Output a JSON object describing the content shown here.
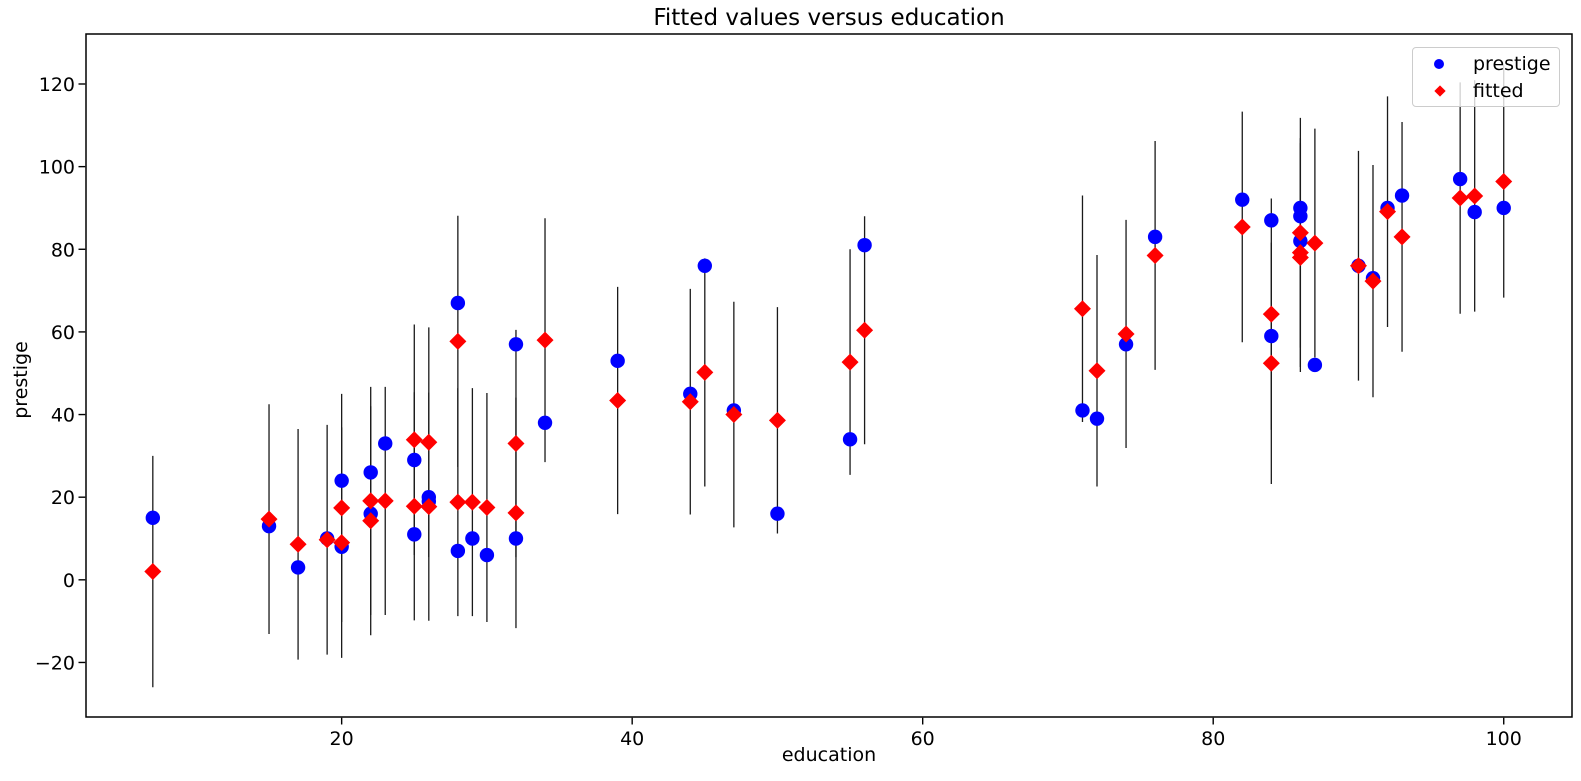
{
  "window": {
    "background": "#ffffff"
  },
  "chart_data": {
    "type": "scatter",
    "title": "Fitted values versus education",
    "xlabel": "education",
    "ylabel": "prestige",
    "xlim": [
      2.4,
      104.7
    ],
    "ylim": [
      -33.2,
      132.1
    ],
    "xticks": [
      20,
      40,
      60,
      80,
      100
    ],
    "yticks": [
      -20,
      0,
      20,
      40,
      60,
      80,
      100,
      120
    ],
    "grid": false,
    "axis_color": "#000000",
    "errorbar_color": "#1a1a1a",
    "legend": {
      "position": "upper right",
      "entries": [
        {
          "label": "prestige",
          "marker": "circle",
          "color": "#0000FF"
        },
        {
          "label": "fitted",
          "marker": "diamond",
          "color": "#FF0000"
        }
      ]
    },
    "series": [
      {
        "name": "prestige",
        "marker": "circle",
        "color": "#0000FF",
        "x": [
          86,
          76,
          92,
          90,
          86,
          84,
          93,
          100,
          87,
          86,
          74,
          98,
          97,
          84,
          91,
          34,
          45,
          56,
          44,
          82,
          72,
          55,
          71,
          50,
          23,
          39,
          28,
          32,
          22,
          25,
          29,
          7,
          26,
          19,
          15,
          20,
          26,
          28,
          17,
          22,
          30,
          25,
          20,
          47,
          32
        ],
        "y": [
          82,
          83,
          90,
          76,
          90,
          87,
          93,
          90,
          52,
          88,
          57,
          89,
          97,
          59,
          73,
          38,
          76,
          81,
          45,
          92,
          39,
          34,
          41,
          16,
          33,
          53,
          67,
          57,
          26,
          29,
          10,
          15,
          19,
          10,
          13,
          24,
          20,
          7,
          3,
          16,
          6,
          11,
          8,
          41,
          10
        ]
      },
      {
        "name": "fitted",
        "marker": "diamond",
        "color": "#FF0000",
        "x": [
          86,
          76,
          92,
          90,
          86,
          84,
          93,
          100,
          87,
          86,
          74,
          98,
          97,
          84,
          91,
          34,
          45,
          56,
          44,
          82,
          72,
          55,
          71,
          50,
          23,
          39,
          28,
          32,
          22,
          25,
          29,
          7,
          26,
          19,
          15,
          20,
          26,
          28,
          17,
          22,
          30,
          25,
          20,
          47,
          32
        ],
        "y": [
          78.0,
          78.5,
          89.1,
          76.0,
          79.2,
          52.4,
          83.0,
          96.4,
          81.5,
          84.0,
          59.5,
          92.9,
          92.4,
          64.3,
          72.3,
          58.0,
          50.2,
          60.4,
          43.1,
          85.4,
          50.6,
          52.7,
          65.6,
          38.6,
          19.1,
          43.4,
          57.7,
          33.0,
          19.1,
          33.9,
          18.8,
          2.0,
          33.3,
          9.7,
          14.7,
          17.4,
          17.7,
          18.8,
          8.6,
          14.3,
          17.5,
          17.8,
          9.0,
          40.0,
          16.2
        ],
        "yerr": [
          27.7,
          27.7,
          27.9,
          27.8,
          27.7,
          29.2,
          27.8,
          28.1,
          27.7,
          27.8,
          27.6,
          28.0,
          28.0,
          28.0,
          28.1,
          29.5,
          27.6,
          27.6,
          27.3,
          27.9,
          28.0,
          27.3,
          27.4,
          27.4,
          27.6,
          27.5,
          30.4,
          27.5,
          27.6,
          27.9,
          27.6,
          28.0,
          27.8,
          27.8,
          27.8,
          27.6,
          27.6,
          27.6,
          27.9,
          27.7,
          27.7,
          27.6,
          27.9,
          27.3,
          27.9
        ]
      }
    ]
  }
}
